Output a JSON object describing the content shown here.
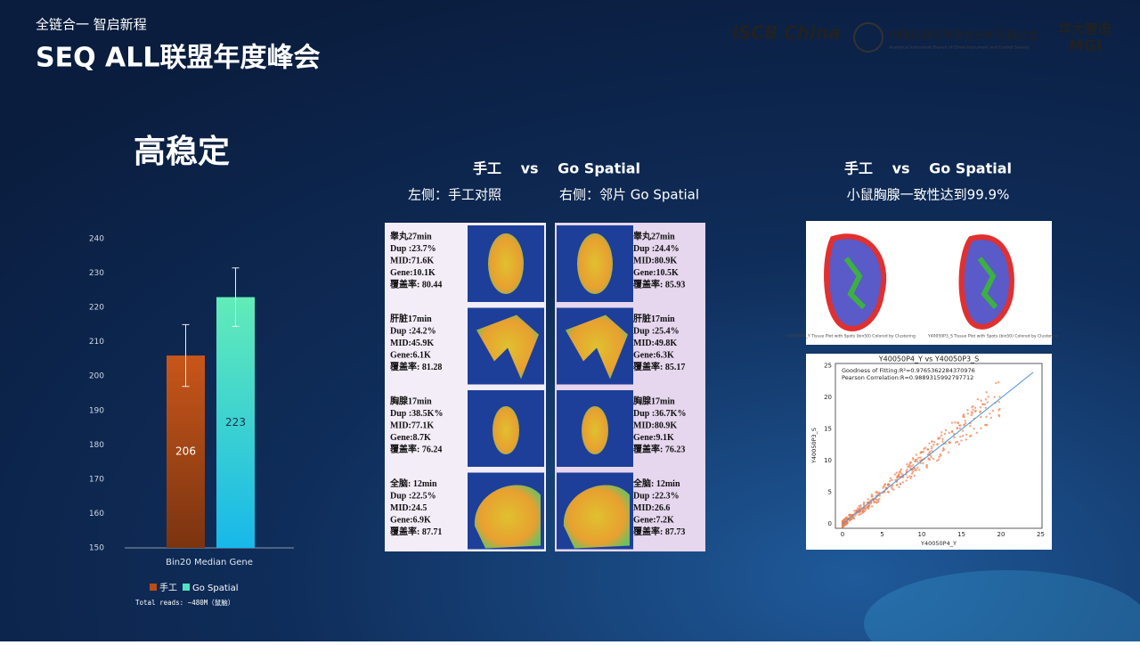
{
  "header": {
    "tagline": "全链合一  智启新程",
    "event": "SEQ ALL联盟年度峰会",
    "logo_iscb": "iSCB China",
    "logo_cis": "中国仪器仪表学会分析仪器分会",
    "logo_cis_en": "Analytical Instrument Branch of China Instrument and Control Society",
    "logo_mgi_cn": "华大智造",
    "logo_mgi": "MGI"
  },
  "section_title": "高稳定",
  "chart_data": {
    "type": "bar",
    "categories": [
      "Bin20 Median Gene"
    ],
    "series": [
      {
        "name": "手工",
        "color": "#b94e14",
        "values": [
          206
        ],
        "errors": [
          9
        ]
      },
      {
        "name": "Go Spatial",
        "color": "#4fe3c1",
        "values": [
          223
        ],
        "errors": [
          8.5
        ]
      }
    ],
    "ylim": [
      150,
      240
    ],
    "yticks": [
      150,
      160,
      170,
      180,
      190,
      200,
      210,
      220,
      230,
      240
    ],
    "note": "Total reads: ~480M（鼠脑）"
  },
  "middle": {
    "title": "手工　 vs　 Go Spatial",
    "subtitle_left": "左侧：手工对照",
    "subtitle_right": "右侧：邻片 Go Spatial",
    "left": [
      [
        "睾丸27min",
        "Dup :23.7%",
        "MID:71.6K",
        "Gene:10.1K",
        "覆盖率:  80.44"
      ],
      [
        "肝脏17min",
        "Dup :24.2%",
        "MID:45.9K",
        "Gene:6.1K",
        "覆盖率:  81.28"
      ],
      [
        "胸腺17min",
        "Dup :38.5K%",
        "MID:77.1K",
        "Gene:8.7K",
        "覆盖率:  76.24"
      ],
      [
        "全脑:  12min",
        "Dup :22.5%",
        "MID:24.5",
        "Gene:6.9K",
        "覆盖率:  87.71"
      ]
    ],
    "right": [
      [
        "睾丸27min",
        "Dup :24.4%",
        "MID:80.9K",
        "Gene:10.5K",
        "覆盖率:  85.93"
      ],
      [
        "肝脏17min",
        "Dup :25.4%",
        "MID:49.8K",
        "Gene:6.3K",
        "覆盖率:  85.17"
      ],
      [
        "胸腺17min",
        "Dup :36.7K%",
        "MID:80.9K",
        "Gene:9.1K",
        "覆盖率:  76.23"
      ],
      [
        "全脑:  12min",
        "Dup :22.3%",
        "MID:26.6",
        "Gene:7.2K",
        "覆盖率:  87.73"
      ]
    ]
  },
  "right_panel": {
    "title": "手工　 vs　 Go Spatial",
    "subtitle": "小鼠胸腺一致性达到99.9%",
    "cluster_captions": [
      "Y40050P4_Y Tissue Plot with Spots (bin50) Colored by Clustering",
      "Y40050P3_S Tissue Plot with Spots (bin50) Colored by Clustering"
    ],
    "scatter": {
      "title": "Y40050P4_Y vs Y40050P3_S",
      "fit": "Goodness of Fitting:R²=0.9765362284370976",
      "pearson": "Pearson Correlation:R=0.9889315992797712",
      "xlabel": "Y40050P4_Y",
      "ylabel": "Y40050P3_S",
      "xticks": [
        "0",
        "5",
        "10",
        "15",
        "20",
        "25"
      ],
      "yticks": [
        "0",
        "5",
        "10",
        "15",
        "20",
        "25"
      ]
    }
  }
}
